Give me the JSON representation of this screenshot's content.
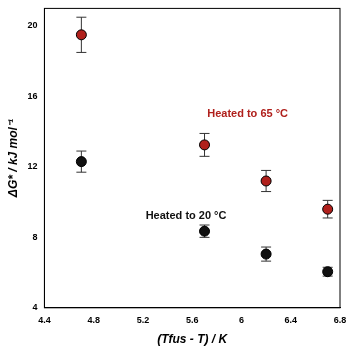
{
  "chart_data": {
    "type": "scatter",
    "x_label": "(Tfus - T) / K",
    "y_label": "ΔG* / kJ mol⁻¹",
    "x": [
      4.7,
      5.7,
      6.2,
      6.7
    ],
    "series": [
      {
        "name": "Heated to 65 °C",
        "color": "#b0201c",
        "marker": "circle",
        "values": [
          19.5,
          13.25,
          11.2,
          9.6
        ],
        "errors": [
          1.0,
          0.65,
          0.6,
          0.5
        ]
      },
      {
        "name": "Heated to 20 °C",
        "color": "#111111",
        "marker": "circle",
        "values": [
          12.3,
          8.35,
          7.05,
          6.05
        ],
        "errors": [
          0.6,
          0.35,
          0.4,
          0.25
        ]
      }
    ],
    "annotations": [
      {
        "text": "Heated to 65 °C",
        "x": 6.05,
        "y": 15,
        "color": "#b0201c"
      },
      {
        "text": "Heated to 20 °C",
        "x": 5.55,
        "y": 9.2,
        "color": "#111111"
      }
    ],
    "xlim": [
      4.4,
      6.8
    ],
    "xticks": [
      4.4,
      4.8,
      5.2,
      5.6,
      6,
      6.4,
      6.8
    ],
    "ylim": [
      4,
      21
    ],
    "yticks": [
      4,
      8,
      12,
      16,
      20
    ],
    "grid": false
  }
}
